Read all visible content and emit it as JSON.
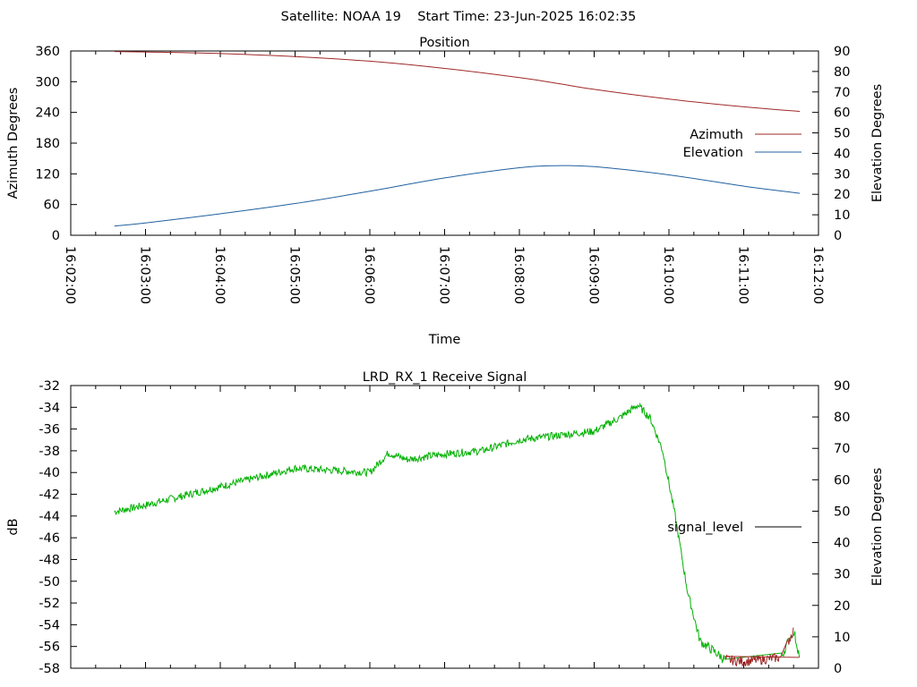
{
  "header": {
    "title": "Satellite: NOAA 19    Start Time: 23-Jun-2025 16:02:35"
  },
  "colors": {
    "azimuth": "#a02828",
    "elevation": "#2060a0",
    "signal_high": "#00b000",
    "signal_low": "#a02828",
    "axis": "#000000"
  },
  "chart_data": [
    {
      "type": "line",
      "title": "Position",
      "xlabel": "Time",
      "ylabel": "Azimuth Degrees",
      "y2label": "Elevation Degrees",
      "xlim": [
        "16:02:00",
        "16:12:00"
      ],
      "ylim": [
        0,
        360
      ],
      "y2lim": [
        0,
        90
      ],
      "x_ticks": [
        "16:02:00",
        "16:03:00",
        "16:04:00",
        "16:05:00",
        "16:06:00",
        "16:07:00",
        "16:08:00",
        "16:09:00",
        "16:10:00",
        "16:11:00",
        "16:12:00"
      ],
      "y_ticks": [
        "0",
        "60",
        "120",
        "180",
        "240",
        "300",
        "360"
      ],
      "y2_ticks": [
        "0",
        "10",
        "20",
        "30",
        "40",
        "50",
        "60",
        "70",
        "80",
        "90"
      ],
      "legend_position": "right",
      "grid": false,
      "series": [
        {
          "name": "Azimuth",
          "axis": "y",
          "x": [
            "16:02:35",
            "16:03:00",
            "16:04:00",
            "16:05:00",
            "16:06:00",
            "16:07:00",
            "16:08:00",
            "16:08:30",
            "16:09:00",
            "16:10:00",
            "16:11:00",
            "16:11:45"
          ],
          "values": [
            359,
            358,
            355,
            349,
            340,
            326,
            308,
            297,
            285,
            266,
            251,
            242
          ]
        },
        {
          "name": "Elevation",
          "axis": "y2",
          "x": [
            "16:02:35",
            "16:03:00",
            "16:04:00",
            "16:05:00",
            "16:06:00",
            "16:07:00",
            "16:08:00",
            "16:08:30",
            "16:09:00",
            "16:10:00",
            "16:11:00",
            "16:11:45"
          ],
          "values": [
            4.5,
            6,
            10.5,
            15.5,
            21.5,
            28,
            33,
            34,
            33.5,
            29.5,
            24,
            20.5
          ]
        }
      ]
    },
    {
      "type": "line",
      "title": "LRD_RX_1 Receive Signal",
      "ylabel": "dB",
      "y2label": "Elevation Degrees",
      "xlim": [
        "16:02:00",
        "16:12:00"
      ],
      "ylim": [
        -58,
        -32
      ],
      "y2lim": [
        0,
        90
      ],
      "y_ticks": [
        "-32",
        "-34",
        "-36",
        "-38",
        "-40",
        "-42",
        "-44",
        "-46",
        "-48",
        "-50",
        "-52",
        "-54",
        "-56",
        "-58"
      ],
      "y2_ticks": [
        "0",
        "10",
        "20",
        "30",
        "40",
        "50",
        "60",
        "70",
        "80",
        "90"
      ],
      "legend_position": "right",
      "grid": false,
      "series": [
        {
          "name": "signal_level",
          "axis": "y",
          "x": [
            "16:02:35",
            "16:03:00",
            "16:04:00",
            "16:05:00",
            "16:06:00",
            "16:06:15",
            "16:06:30",
            "16:07:00",
            "16:07:30",
            "16:08:00",
            "16:08:30",
            "16:09:00",
            "16:09:20",
            "16:09:35",
            "16:09:45",
            "16:09:55",
            "16:10:05",
            "16:10:15",
            "16:10:25",
            "16:10:45",
            "16:11:00",
            "16:11:30",
            "16:11:40",
            "16:11:45"
          ],
          "values": [
            -43.6,
            -43.0,
            -41.3,
            -39.6,
            -40.0,
            -38.2,
            -38.8,
            -38.3,
            -38.0,
            -37.0,
            -36.6,
            -36.2,
            -35.0,
            -33.8,
            -35.0,
            -38.0,
            -44.0,
            -51.0,
            -55.5,
            -57.2,
            -57.4,
            -57.0,
            -54.5,
            -57.0
          ]
        }
      ]
    }
  ]
}
